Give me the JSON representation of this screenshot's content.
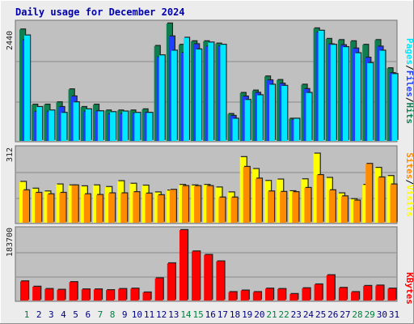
{
  "chart_data": {
    "type": "bar",
    "title": "Daily usage for December 2024",
    "categories": [
      "1",
      "2",
      "3",
      "4",
      "5",
      "6",
      "7",
      "8",
      "9",
      "10",
      "11",
      "12",
      "13",
      "14",
      "15",
      "16",
      "17",
      "18",
      "19",
      "20",
      "21",
      "22",
      "23",
      "24",
      "25",
      "26",
      "27",
      "28",
      "29",
      "30",
      "31"
    ],
    "weekend_days": [
      1,
      7,
      8,
      14,
      15,
      21,
      22,
      28,
      29
    ],
    "colors": {
      "hits": "#0f7f4f",
      "files": "#1f3fff",
      "pages": "#00e8ff",
      "visits": "#ffff00",
      "sites": "#ff8c00",
      "kbytes": "#ff0000",
      "panel_bg": "#c0c0c0",
      "title": "#0000aa",
      "weekend_label": "#008040",
      "weekday_label": "#000080"
    },
    "panels": [
      {
        "id": "hits_files_pages",
        "ymax_label": "2440",
        "ylim": [
          0,
          2440
        ],
        "series": [
          {
            "name": "Hits",
            "values": [
              2316,
              754,
              754,
              803,
              1072,
              705,
              754,
              633,
              633,
              633,
              657,
              1974,
              2440,
              1998,
              2071,
              2071,
              2023,
              560,
              998,
              1047,
              1340,
              1266,
              462,
              1169,
              2339,
              2120,
              2096,
              2071,
              1998,
              2096,
              1510
            ]
          },
          {
            "name": "Files",
            "values": [
              2095,
              607,
              607,
              705,
              925,
              611,
              617,
              557,
              562,
              573,
              585,
              1740,
              2172,
              1830,
              2010,
              1959,
              1969,
              521,
              923,
              1000,
              1260,
              1190,
              440,
              1078,
              2255,
              2008,
              1989,
              1920,
              1730,
              1960,
              1409
            ]
          },
          {
            "name": "Pages",
            "values": [
              2192,
              705,
              633,
              584,
              803,
              657,
              616,
              599,
              612,
              584,
              584,
              1779,
              1876,
              2144,
              1901,
              2045,
              1999,
              462,
              852,
              950,
              1169,
              1145,
              462,
              998,
              2290,
              1998,
              1949,
              1823,
              1618,
              1876,
              1390
            ]
          }
        ]
      },
      {
        "id": "visits_sites",
        "ymax_label": "312",
        "ylim": [
          0,
          312
        ],
        "series": [
          {
            "name": "Visits",
            "values": [
              175,
              146,
              134,
              164,
              160,
              156,
              160,
              153,
              178,
              167,
              159,
              130,
              138,
              162,
              160,
              162,
              151,
              130,
              281,
              230,
              179,
              185,
              135,
              186,
              296,
              192,
              126,
              101,
              162,
              235,
              200
            ]
          },
          {
            "name": "Sites",
            "values": [
              139,
              128,
              122,
              128,
              160,
              122,
              119,
              126,
              126,
              131,
              125,
              118,
              141,
              157,
              157,
              157,
              108,
              108,
              239,
              189,
              134,
              132,
              131,
              149,
              204,
              139,
              113,
              95,
              252,
              194,
              164
            ]
          }
        ]
      },
      {
        "id": "kbytes",
        "ymax_label": "183700",
        "ylim": [
          0,
          183700
        ],
        "series": [
          {
            "name": "KBytes",
            "values": [
              50000,
              36000,
              30000,
              28000,
              48000,
              29000,
              29000,
              27000,
              30000,
              31000,
              21000,
              58000,
              97000,
              183700,
              128000,
              119000,
              102000,
              22000,
              26000,
              22000,
              31000,
              30000,
              17000,
              32000,
              42000,
              66000,
              33000,
              22000,
              38000,
              39000,
              31000
            ]
          }
        ]
      }
    ],
    "legend": {
      "position": "right",
      "top_panel": [
        {
          "text": "Pages",
          "color": "#00e8ff"
        },
        {
          "text": "/",
          "color": "#000000"
        },
        {
          "text": "Files",
          "color": "#1f3fff"
        },
        {
          "text": "/",
          "color": "#000000"
        },
        {
          "text": "Hits",
          "color": "#0f7f4f"
        }
      ],
      "middle_panel": [
        {
          "text": "Sites",
          "color": "#ff8c00"
        },
        {
          "text": "/",
          "color": "#000000"
        },
        {
          "text": "Visits",
          "color": "#ffff00"
        }
      ],
      "bottom_panel": [
        {
          "text": "KBytes",
          "color": "#ff0000"
        }
      ]
    },
    "grid": true
  }
}
